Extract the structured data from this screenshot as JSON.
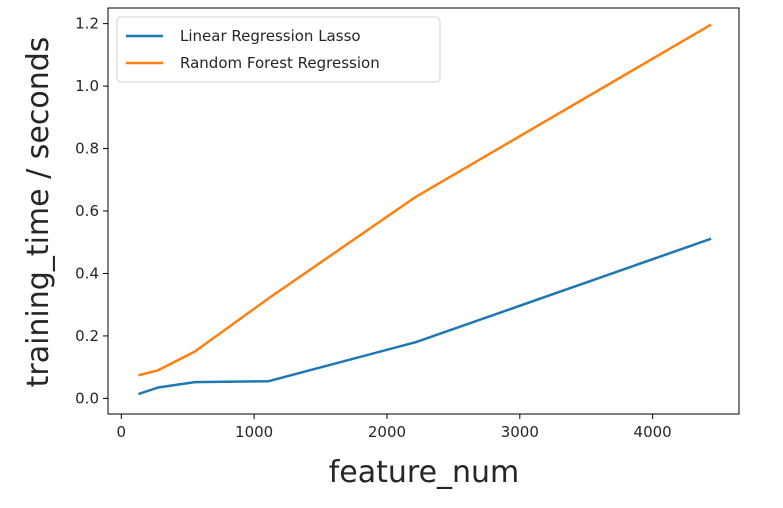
{
  "chart_data": {
    "type": "line",
    "title": "",
    "xlabel": "feature_num",
    "ylabel": "training_time / seconds",
    "xlim": [
      -100,
      4650
    ],
    "ylim": [
      -0.05,
      1.25
    ],
    "xticks": [
      0,
      1000,
      2000,
      3000,
      4000
    ],
    "xtick_labels": [
      "0",
      "1000",
      "2000",
      "3000",
      "4000"
    ],
    "yticks": [
      0.0,
      0.2,
      0.4,
      0.6,
      0.8,
      1.0,
      1.2
    ],
    "ytick_labels": [
      "0.0",
      "0.2",
      "0.4",
      "0.6",
      "0.8",
      "1.0",
      "1.2"
    ],
    "grid": false,
    "legend_position": "top-left",
    "series": [
      {
        "name": "Linear Regression Lasso",
        "color": "#1f77b4",
        "x": [
          138,
          277,
          554,
          1108,
          2216,
          4432
        ],
        "y": [
          0.015,
          0.035,
          0.052,
          0.055,
          0.18,
          0.51
        ]
      },
      {
        "name": "Random Forest Regression",
        "color": "#ff7f0e",
        "x": [
          138,
          277,
          554,
          1108,
          2216,
          4432
        ],
        "y": [
          0.075,
          0.09,
          0.15,
          0.32,
          0.645,
          1.195
        ]
      }
    ]
  }
}
